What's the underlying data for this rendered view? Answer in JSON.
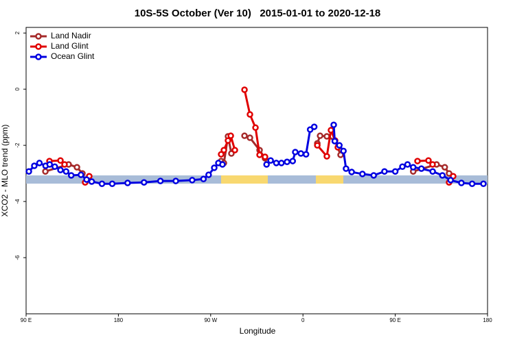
{
  "chart_data": {
    "type": "line",
    "title": "10S-5S October (Ver 10)   2015-01-01 to 2020-12-18",
    "x_label": "Longitude",
    "y_label": "XCO2 - MLO trend (ppm)",
    "xlim": [
      90,
      540
    ],
    "xticks": [
      {
        "value": 90,
        "label": "90 E"
      },
      {
        "value": 180,
        "label": "180"
      },
      {
        "value": 270,
        "label": "90 W"
      },
      {
        "value": 360,
        "label": "0"
      },
      {
        "value": 450,
        "label": "90 E"
      },
      {
        "value": 540,
        "label": "180"
      }
    ],
    "ylim": [
      -8,
      2.2
    ],
    "yticks": [
      2,
      0,
      -2,
      -4,
      -6
    ],
    "legend": "top-left",
    "series": [
      {
        "name": "Land Nadir",
        "color": "#a52a2a",
        "x": [
          108.8,
          131.5,
          139.6,
          144.9,
          null,
          280.2,
          282.9,
          286.9,
          290.2,
          null,
          303,
          308.3,
          317.7,
          323,
          null,
          374,
          376.7,
          383.3,
          391.3,
          396.7,
          null,
          467.5,
          490.3,
          498.3,
          502.5
        ],
        "values": [
          -2.93,
          -2.68,
          -2.78,
          -3.0,
          null,
          -2.56,
          -2.63,
          -1.68,
          -2.29,
          null,
          -1.66,
          -1.73,
          -2.17,
          -2.46,
          null,
          -1.93,
          -1.66,
          -1.68,
          -1.83,
          -2.34,
          null,
          -2.93,
          -2.68,
          -2.78,
          -3.0
        ]
      },
      {
        "name": "Land Glint",
        "color": "#e00000",
        "x": [
          112.8,
          123.5,
          127.5,
          null,
          147.6,
          151.6,
          null,
          280.2,
          282.9,
          286.9,
          289.6,
          293.6,
          null,
          303,
          308.3,
          313.7,
          317.7,
          323,
          null,
          374,
          383.3,
          387.3,
          391.3,
          394,
          null,
          471.7,
          482.4,
          486.4,
          null,
          502.5,
          506.5
        ],
        "values": [
          -2.56,
          -2.54,
          -2.68,
          null,
          -3.32,
          -3.1,
          null,
          -2.32,
          -2.17,
          -1.83,
          -1.66,
          -2.17,
          null,
          -0.02,
          -0.9,
          -1.37,
          -2.34,
          -2.41,
          null,
          -2.0,
          -2.39,
          -1.46,
          -1.83,
          -2.07,
          null,
          -2.56,
          -2.54,
          -2.68,
          null,
          -3.32,
          -3.1
        ]
      },
      {
        "name": "Ocean Glint",
        "color": "#0000e0",
        "x": [
          92.7,
          98,
          103,
          109,
          113,
          118,
          123.5,
          129,
          134,
          143.5,
          149,
          154,
          164,
          174,
          189,
          205,
          221,
          236,
          252,
          263,
          268,
          273.5,
          277.5,
          281.5,
          null,
          324.5,
          328.5,
          334,
          339,
          344.5,
          350,
          352.5,
          358,
          363,
          367,
          371,
          null,
          390,
          391,
          395.5,
          399.5,
          402,
          407.5,
          418,
          429,
          439.5,
          450,
          457,
          462,
          467.5,
          475.5,
          486.5,
          496,
          504,
          514.5,
          525,
          536
        ],
        "values": [
          -2.93,
          -2.73,
          -2.63,
          -2.73,
          -2.68,
          -2.76,
          -2.88,
          -2.93,
          -3.07,
          -3.05,
          -3.22,
          -3.29,
          -3.37,
          -3.37,
          -3.34,
          -3.32,
          -3.27,
          -3.27,
          -3.24,
          -3.2,
          -3.05,
          -2.8,
          -2.63,
          -2.68,
          null,
          -2.68,
          -2.54,
          -2.63,
          -2.63,
          -2.59,
          -2.56,
          -2.24,
          -2.29,
          -2.32,
          -1.44,
          -1.34,
          null,
          -1.27,
          -1.85,
          -2.0,
          -2.2,
          -2.83,
          -2.95,
          -3.02,
          -3.07,
          -2.93,
          -2.93,
          -2.76,
          -2.68,
          -2.78,
          -2.83,
          -2.93,
          -3.07,
          -3.24,
          -3.34,
          -3.37,
          -3.37
        ]
      }
    ]
  }
}
